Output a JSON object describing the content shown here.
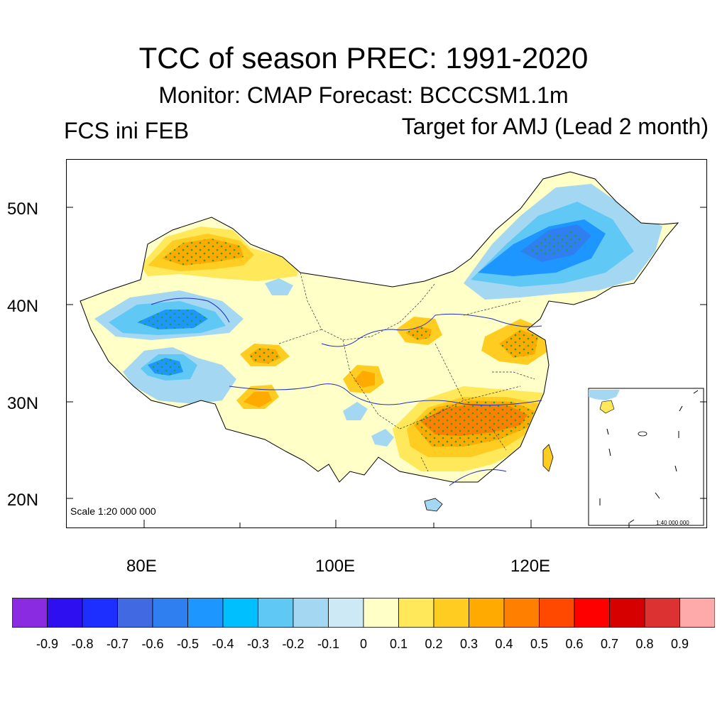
{
  "title": "TCC of season PREC: 1991-2020",
  "subtitle": "Monitor: CMAP   Forecast: BCCCSM1.1m",
  "left_label": "FCS ini FEB",
  "right_label": "Target for AMJ (Lead 2 month)",
  "map": {
    "latitude_labels": [
      "50N",
      "40N",
      "30N",
      "20N"
    ],
    "longitude_labels": [
      "80E",
      "100E",
      "120E"
    ],
    "scale_main": "Scale 1:20 000 000",
    "scale_inset": "1:40 000 000",
    "palette": {
      "neg9": "#8a2be2",
      "neg8": "#2e0ff0",
      "neg7": "#1c2fff",
      "neg6": "#4169e1",
      "neg5": "#2f7ff0",
      "neg4": "#1e96ff",
      "neg3": "#00bfff",
      "neg2": "#5fc8f5",
      "neg1": "#a4d8f2",
      "zero": "#cde9f6",
      "pos0": "#ffffc8",
      "pos1": "#ffe85a",
      "pos2": "#ffcc22",
      "pos3": "#ffaa00",
      "pos4": "#ff8000",
      "pos5": "#ff4800",
      "pos6": "#ff0000",
      "pos7": "#d70000",
      "pos8": "#dc3232",
      "pos9": "#ffaaaa"
    }
  },
  "colorbar": {
    "labels": [
      "-0.9",
      "-0.8",
      "-0.7",
      "-0.6",
      "-0.5",
      "-0.4",
      "-0.3",
      "-0.2",
      "-0.1",
      "0",
      "0.1",
      "0.2",
      "0.3",
      "0.4",
      "0.5",
      "0.6",
      "0.7",
      "0.8",
      "0.9"
    ],
    "colors": [
      "#8a2be2",
      "#2e0ff0",
      "#1c2fff",
      "#4169e1",
      "#2f7ff0",
      "#1e96ff",
      "#00bfff",
      "#5fc8f5",
      "#a4d8f2",
      "#cde9f6",
      "#ffffc8",
      "#ffe85a",
      "#ffcc22",
      "#ffaa00",
      "#ff8000",
      "#ff4800",
      "#ff0000",
      "#d70000",
      "#dc3232",
      "#ffaaaa"
    ]
  }
}
